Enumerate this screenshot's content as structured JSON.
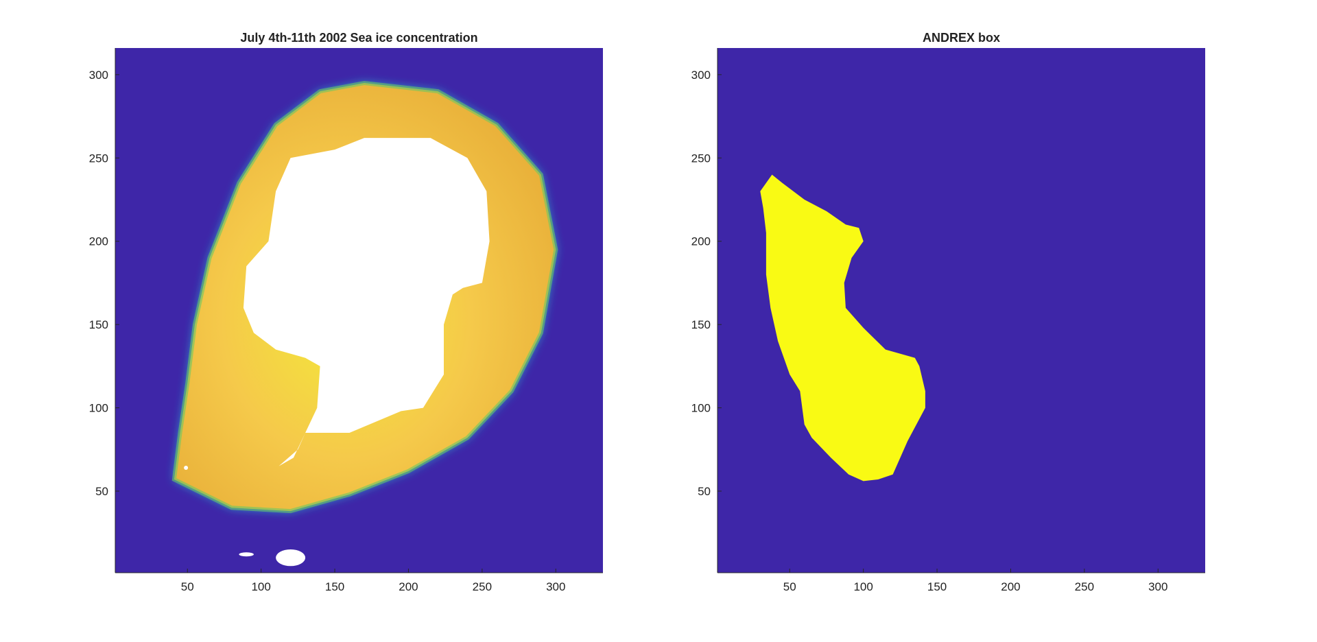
{
  "chart_data": [
    {
      "type": "heatmap",
      "title": "July 4th-11th 2002 Sea ice concentration",
      "xlabel": "",
      "ylabel": "",
      "xlim": [
        1,
        332
      ],
      "ylim": [
        1,
        316
      ],
      "xticks": [
        50,
        100,
        150,
        200,
        250,
        300
      ],
      "yticks": [
        50,
        100,
        150,
        200,
        250,
        300
      ],
      "grid": false,
      "colormap": "parula",
      "colors": {
        "ocean": "#3e26a8",
        "pack_ice": "#f9d233",
        "land_mask": "#ffffff"
      },
      "features": {
        "ice_ring_outer": [
          [
            41,
            57
          ],
          [
            80,
            40
          ],
          [
            120,
            38
          ],
          [
            160,
            48
          ],
          [
            200,
            62
          ],
          [
            240,
            82
          ],
          [
            270,
            110
          ],
          [
            290,
            145
          ],
          [
            300,
            195
          ],
          [
            290,
            240
          ],
          [
            260,
            270
          ],
          [
            220,
            290
          ],
          [
            170,
            295
          ],
          [
            140,
            290
          ],
          [
            110,
            270
          ],
          [
            85,
            235
          ],
          [
            65,
            190
          ],
          [
            55,
            150
          ],
          [
            50,
            115
          ],
          [
            45,
            85
          ]
        ],
        "continent": [
          [
            112,
            65
          ],
          [
            122,
            70
          ],
          [
            130,
            85
          ],
          [
            160,
            85
          ],
          [
            195,
            98
          ],
          [
            210,
            100
          ],
          [
            224,
            120
          ],
          [
            224,
            150
          ],
          [
            230,
            168
          ],
          [
            237,
            172
          ],
          [
            250,
            175
          ],
          [
            255,
            200
          ],
          [
            253,
            230
          ],
          [
            240,
            250
          ],
          [
            215,
            262
          ],
          [
            170,
            262
          ],
          [
            150,
            255
          ],
          [
            120,
            250
          ],
          [
            110,
            230
          ],
          [
            105,
            200
          ],
          [
            90,
            185
          ],
          [
            88,
            160
          ],
          [
            95,
            145
          ],
          [
            110,
            135
          ],
          [
            130,
            130
          ],
          [
            140,
            125
          ],
          [
            138,
            100
          ],
          [
            130,
            85
          ],
          [
            125,
            75
          ]
        ],
        "islands": [
          [
            [
              48,
              63
            ],
            [
              50,
              65
            ]
          ],
          [
            [
              85,
              11
            ],
            [
              95,
              13
            ]
          ],
          [
            [
              110,
              5
            ],
            [
              130,
              15
            ]
          ]
        ]
      }
    },
    {
      "type": "heatmap",
      "title": "ANDREX box",
      "xlabel": "",
      "ylabel": "",
      "xlim": [
        1,
        332
      ],
      "ylim": [
        1,
        316
      ],
      "xticks": [
        50,
        100,
        150,
        200,
        250,
        300
      ],
      "yticks": [
        50,
        100,
        150,
        200,
        250,
        300
      ],
      "grid": false,
      "colormap": "parula",
      "colors": {
        "outside": "#3e26a8",
        "inside": "#f9fa14"
      },
      "mask_region": [
        [
          38,
          240
        ],
        [
          45,
          235
        ],
        [
          60,
          225
        ],
        [
          75,
          218
        ],
        [
          88,
          210
        ],
        [
          97,
          208
        ],
        [
          100,
          200
        ],
        [
          92,
          190
        ],
        [
          87,
          175
        ],
        [
          88,
          160
        ],
        [
          100,
          148
        ],
        [
          115,
          135
        ],
        [
          135,
          130
        ],
        [
          138,
          125
        ],
        [
          142,
          110
        ],
        [
          142,
          100
        ],
        [
          130,
          80
        ],
        [
          125,
          70
        ],
        [
          120,
          60
        ],
        [
          110,
          57
        ],
        [
          100,
          56
        ],
        [
          90,
          60
        ],
        [
          78,
          70
        ],
        [
          65,
          82
        ],
        [
          60,
          90
        ],
        [
          57,
          110
        ],
        [
          50,
          120
        ],
        [
          42,
          140
        ],
        [
          37,
          160
        ],
        [
          34,
          180
        ],
        [
          34,
          205
        ],
        [
          32,
          220
        ],
        [
          30,
          230
        ]
      ]
    }
  ]
}
